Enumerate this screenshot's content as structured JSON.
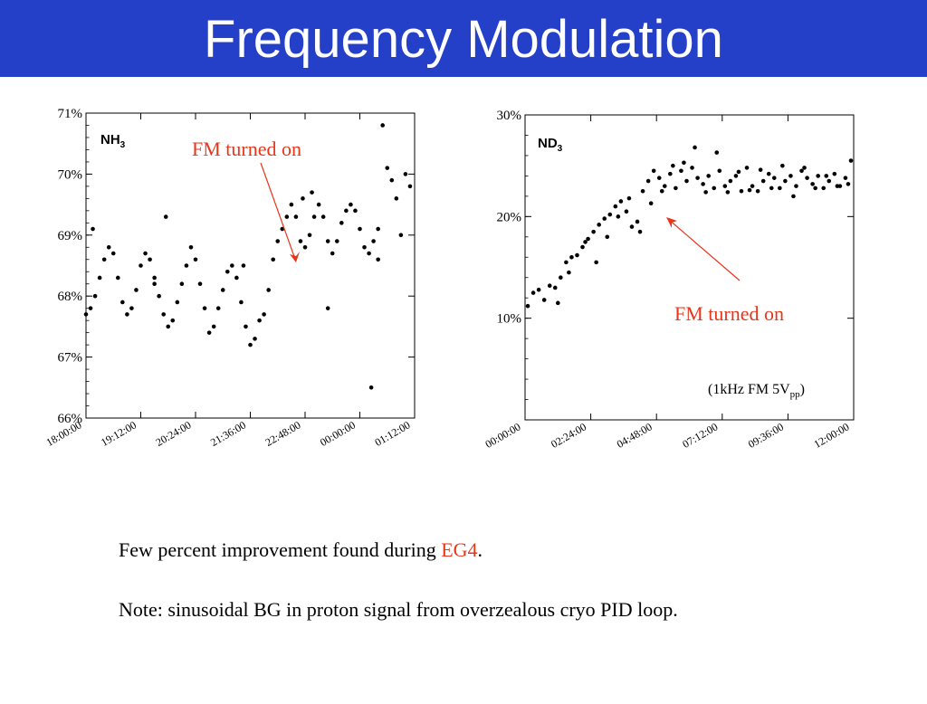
{
  "slide": {
    "title": "Frequency Modulation",
    "footer": {
      "line1_prefix": "Few percent improvement found during ",
      "line1_highlight": "EG4",
      "line1_suffix": ".",
      "line2": "Note: sinusoidal BG in proton signal from overzealous cryo PID loop."
    },
    "colors": {
      "title_bar": "#2540c8",
      "annotation": "#e8361b",
      "points": "#000000"
    }
  },
  "chart_data": [
    {
      "type": "scatter",
      "tag_label_base": "NH",
      "tag_label_sub": "3",
      "annotation": "FM turned on",
      "x_tick_labels": [
        "18:00:00",
        "19:12:00",
        "20:24:00",
        "21:36:00",
        "22:48:00",
        "00:00:00",
        "01:12:00"
      ],
      "xlim": [
        0,
        7.2
      ],
      "y_tick_labels": [
        "66%",
        "67%",
        "68%",
        "69%",
        "70%",
        "71%"
      ],
      "y_tick_values": [
        66,
        67,
        68,
        69,
        70,
        71
      ],
      "ylim": [
        66,
        71
      ],
      "x_unit": "hours after 18:00:00",
      "series": [
        {
          "x": [
            0.0,
            0.1,
            0.2,
            0.3,
            0.4,
            0.5,
            0.6,
            0.7,
            0.8,
            0.9,
            1.0,
            1.1,
            1.2,
            1.3,
            1.4,
            1.5,
            1.6,
            1.7,
            1.8,
            1.9,
            2.0,
            2.1,
            2.2,
            2.3,
            2.4,
            2.5,
            2.6,
            2.7,
            2.8,
            2.9,
            3.0,
            3.1,
            3.2,
            3.3,
            3.4,
            3.5,
            3.6,
            3.7,
            3.8,
            3.9,
            4.0,
            4.1,
            4.2,
            4.3,
            4.4,
            4.5,
            4.6,
            4.7,
            4.8,
            4.9,
            5.0,
            5.1,
            5.2,
            5.3,
            5.4,
            5.5,
            5.6,
            5.7,
            5.8,
            5.9,
            6.0,
            6.1,
            6.2,
            6.3,
            6.4,
            6.5,
            6.6,
            6.7,
            6.8,
            6.9,
            7.0,
            7.1,
            0.15,
            1.5,
            1.75,
            3.45,
            4.75,
            4.95,
            5.3,
            6.25,
            6.4
          ],
          "y": [
            67.7,
            67.8,
            68.0,
            68.3,
            68.6,
            68.8,
            68.7,
            68.3,
            67.9,
            67.7,
            67.8,
            68.1,
            68.5,
            68.7,
            68.6,
            68.3,
            68.0,
            67.7,
            67.5,
            67.6,
            67.9,
            68.2,
            68.5,
            68.8,
            68.6,
            68.2,
            67.8,
            67.4,
            67.5,
            67.8,
            68.1,
            68.4,
            68.5,
            68.3,
            67.9,
            67.5,
            67.2,
            67.3,
            67.6,
            67.7,
            68.1,
            68.6,
            68.9,
            69.1,
            69.3,
            69.5,
            69.3,
            68.9,
            68.8,
            69.0,
            69.3,
            69.5,
            69.3,
            68.9,
            68.7,
            68.9,
            69.2,
            69.4,
            69.5,
            69.4,
            69.1,
            68.8,
            68.7,
            68.9,
            69.1,
            70.8,
            70.1,
            69.9,
            69.6,
            69.0,
            70.0,
            69.8,
            69.1,
            68.2,
            69.3,
            68.5,
            69.6,
            69.7,
            67.8,
            66.5,
            68.6
          ]
        }
      ]
    },
    {
      "type": "scatter",
      "tag_label_base": "ND",
      "tag_label_sub": "3",
      "annotation": "FM turned on",
      "note_prefix": "(1kHz FM 5V",
      "note_sub": "pp",
      "note_suffix": ")",
      "x_tick_labels": [
        "00:00:00",
        "02:24:00",
        "04:48:00",
        "07:12:00",
        "09:36:00",
        "12:00:00"
      ],
      "xlim": [
        0,
        12
      ],
      "y_tick_labels": [
        "10%",
        "20%",
        "30%"
      ],
      "y_tick_values": [
        10,
        20,
        30
      ],
      "ylim": [
        0,
        30
      ],
      "x_unit": "hours after 00:00:00",
      "series": [
        {
          "x": [
            0.1,
            0.3,
            0.5,
            0.7,
            0.9,
            1.1,
            1.3,
            1.5,
            1.7,
            1.9,
            2.1,
            2.3,
            2.5,
            2.7,
            2.9,
            3.1,
            3.3,
            3.5,
            3.7,
            3.9,
            4.1,
            4.3,
            4.5,
            4.7,
            4.9,
            5.1,
            5.3,
            5.5,
            5.7,
            5.9,
            6.1,
            6.3,
            6.5,
            6.7,
            6.9,
            7.1,
            7.3,
            7.5,
            7.7,
            7.9,
            8.1,
            8.3,
            8.5,
            8.7,
            8.9,
            9.1,
            9.3,
            9.5,
            9.7,
            9.9,
            10.1,
            10.3,
            10.5,
            10.7,
            10.9,
            11.1,
            11.3,
            11.5,
            11.7,
            11.9,
            1.2,
            1.6,
            2.2,
            2.6,
            3.0,
            3.4,
            3.8,
            4.2,
            4.6,
            5.0,
            5.4,
            5.8,
            6.2,
            6.6,
            7.0,
            7.4,
            7.8,
            8.2,
            8.6,
            9.0,
            9.4,
            9.8,
            10.2,
            10.6,
            11.0,
            11.4,
            11.8
          ],
          "y": [
            11.2,
            12.5,
            12.8,
            11.8,
            13.2,
            13.0,
            14.0,
            15.5,
            16.0,
            16.2,
            17.0,
            17.8,
            18.5,
            19.2,
            19.8,
            20.2,
            21.0,
            21.5,
            20.5,
            19.0,
            19.5,
            22.5,
            23.5,
            24.5,
            23.8,
            23.0,
            24.2,
            22.8,
            24.5,
            23.5,
            24.8,
            23.8,
            23.2,
            24.0,
            22.8,
            24.5,
            23.0,
            23.5,
            24.0,
            22.5,
            24.8,
            23.0,
            22.5,
            23.5,
            24.2,
            23.8,
            22.8,
            23.5,
            24.0,
            23.0,
            24.5,
            23.8,
            23.2,
            24.0,
            22.8,
            23.5,
            24.2,
            23.0,
            23.8,
            25.5,
            11.5,
            14.5,
            17.5,
            15.5,
            18.0,
            20.0,
            21.8,
            18.5,
            21.3,
            22.5,
            25.0,
            25.3,
            26.8,
            22.4,
            26.3,
            22.4,
            24.4,
            22.6,
            24.6,
            22.8,
            25.0,
            22.0,
            24.8,
            22.8,
            24.0,
            23.0,
            23.2
          ]
        }
      ]
    }
  ]
}
